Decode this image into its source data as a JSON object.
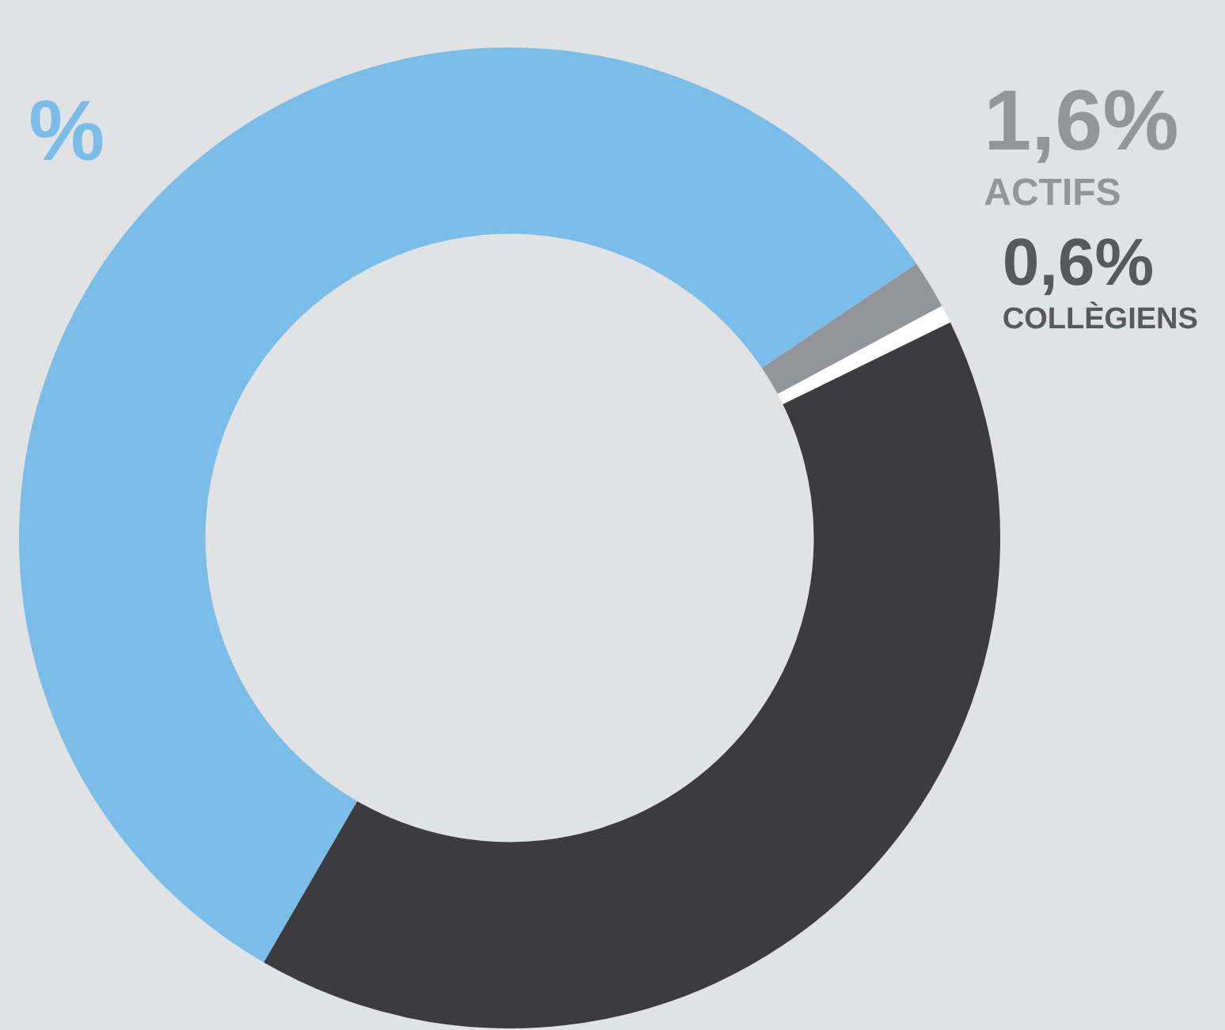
{
  "chart_data": {
    "type": "donut",
    "categories": [
      "ACTIFS",
      "COLLÈGIENS",
      null,
      null
    ],
    "values": [
      1.6,
      0.6,
      40.6,
      57.2
    ],
    "colors": [
      "#939598",
      "#ffffff",
      "#3c3c3e",
      "#7abde8"
    ],
    "value_labels": [
      "1,6%",
      "0,6%",
      null,
      "%"
    ],
    "legend": false
  }
}
